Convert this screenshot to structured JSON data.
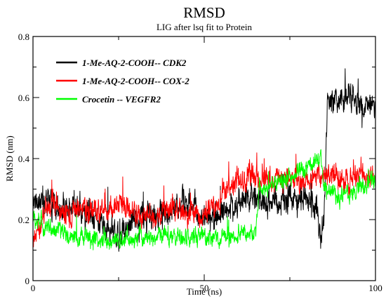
{
  "chart_data": {
    "type": "line",
    "title": "RMSD",
    "subtitle": "LIG after lsq fit to Protein",
    "xlabel": "Time (ns)",
    "ylabel": "RMSD (nm)",
    "xlim": [
      0,
      100
    ],
    "ylim": [
      0,
      0.8
    ],
    "x_ticks": [
      "0",
      "50",
      "100"
    ],
    "y_ticks": [
      "0",
      "0.2",
      "0.4",
      "0.6",
      "0.8"
    ],
    "legend_position": "top-left",
    "grid": false,
    "series": [
      {
        "name": "1-Me-AQ-2-COOH-- CDK2",
        "color": "#000000",
        "anchors_x": [
          0,
          5,
          10,
          15,
          20,
          25,
          30,
          35,
          40,
          45,
          50,
          55,
          60,
          65,
          70,
          75,
          80,
          83,
          84,
          85,
          86,
          90,
          95,
          100
        ],
        "anchors_y": [
          0.27,
          0.25,
          0.24,
          0.22,
          0.2,
          0.15,
          0.22,
          0.2,
          0.24,
          0.26,
          0.2,
          0.22,
          0.25,
          0.27,
          0.26,
          0.26,
          0.27,
          0.24,
          0.12,
          0.22,
          0.58,
          0.6,
          0.58,
          0.58
        ],
        "noise": 0.045
      },
      {
        "name": "1-Me-AQ-2-COOH-- COX-2",
        "color": "#ff0000",
        "anchors_x": [
          0,
          5,
          10,
          15,
          20,
          25,
          30,
          35,
          40,
          45,
          50,
          55,
          60,
          65,
          70,
          75,
          80,
          85,
          90,
          95,
          100
        ],
        "anchors_y": [
          0.13,
          0.25,
          0.22,
          0.24,
          0.22,
          0.26,
          0.22,
          0.2,
          0.24,
          0.22,
          0.21,
          0.28,
          0.33,
          0.34,
          0.33,
          0.34,
          0.33,
          0.34,
          0.33,
          0.34,
          0.33
        ],
        "noise": 0.04
      },
      {
        "name": "Crocetin -- VEGFR2",
        "color": "#00ff00",
        "anchors_x": [
          0,
          5,
          10,
          15,
          20,
          25,
          30,
          35,
          40,
          45,
          50,
          55,
          60,
          65,
          66,
          70,
          75,
          80,
          84,
          85,
          90,
          95,
          100
        ],
        "anchors_y": [
          0.2,
          0.17,
          0.15,
          0.14,
          0.13,
          0.13,
          0.14,
          0.14,
          0.15,
          0.14,
          0.14,
          0.14,
          0.15,
          0.15,
          0.3,
          0.32,
          0.34,
          0.36,
          0.4,
          0.3,
          0.27,
          0.3,
          0.34
        ],
        "noise": 0.03
      }
    ]
  }
}
